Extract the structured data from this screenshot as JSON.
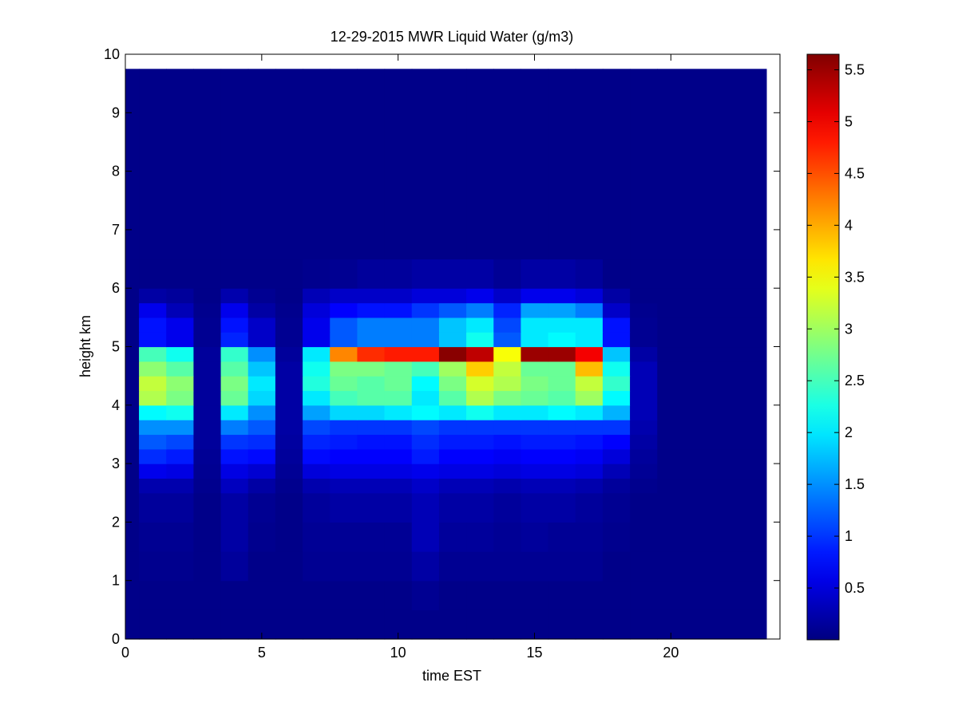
{
  "chart_data": {
    "type": "heatmap",
    "title": "12-29-2015 MWR Liquid Water (g/m3)",
    "xlabel": "time EST",
    "ylabel": "height km",
    "xlim": [
      0,
      24
    ],
    "ylim": [
      0,
      10
    ],
    "xticks": [
      "0",
      "5",
      "10",
      "15",
      "20"
    ],
    "xtick_values": [
      0,
      5,
      10,
      15,
      20
    ],
    "yticks": [
      "0",
      "1",
      "2",
      "3",
      "4",
      "5",
      "6",
      "7",
      "8",
      "9",
      "10"
    ],
    "ytick_values": [
      0,
      1,
      2,
      3,
      4,
      5,
      6,
      7,
      8,
      9,
      10
    ],
    "colorbar": {
      "ticks": [
        "0.5",
        "1",
        "1.5",
        "2",
        "2.5",
        "3",
        "3.5",
        "4",
        "4.5",
        "5",
        "5.5"
      ],
      "tick_values": [
        0.5,
        1,
        1.5,
        2,
        2.5,
        3,
        3.5,
        4,
        4.5,
        5,
        5.5
      ],
      "range": [
        0,
        5.65
      ],
      "colormap": "jet"
    },
    "data_extent": {
      "x": [
        0,
        23.5
      ],
      "y": [
        0,
        9.75
      ]
    },
    "column_x": [
      0,
      0.5,
      1.5,
      2.5,
      3.5,
      4.5,
      5.5,
      6.5,
      7.5,
      8.5,
      9.5,
      10.5,
      11.5,
      12.5,
      13.5,
      14.5,
      15.5,
      16.5,
      17.5,
      18.5,
      19.5,
      23.5
    ],
    "row_y": [
      0,
      0.5,
      1.0,
      1.5,
      2.0,
      2.5,
      2.75,
      3.0,
      3.25,
      3.5,
      3.75,
      4.0,
      4.25,
      4.5,
      4.75,
      5.0,
      5.25,
      5.5,
      5.75,
      6.0,
      6.5,
      9.75
    ],
    "values": [
      [
        0.05,
        0.05,
        0.05,
        0.05,
        0.05,
        0.05,
        0.05,
        0.05,
        0.05,
        0.05,
        0.05,
        0.05,
        0.05,
        0.05,
        0.05,
        0.05,
        0.05,
        0.05,
        0.05,
        0.05,
        0.05
      ],
      [
        0.05,
        0.05,
        0.05,
        0.05,
        0.05,
        0.05,
        0.05,
        0.05,
        0.05,
        0.05,
        0.05,
        0.1,
        0.05,
        0.05,
        0.05,
        0.05,
        0.05,
        0.05,
        0.05,
        0.05,
        0.05
      ],
      [
        0.05,
        0.08,
        0.08,
        0.05,
        0.15,
        0.05,
        0.05,
        0.1,
        0.1,
        0.1,
        0.1,
        0.2,
        0.1,
        0.1,
        0.1,
        0.1,
        0.1,
        0.1,
        0.05,
        0.05,
        0.05
      ],
      [
        0.05,
        0.1,
        0.1,
        0.05,
        0.2,
        0.08,
        0.05,
        0.12,
        0.12,
        0.12,
        0.12,
        0.3,
        0.15,
        0.15,
        0.12,
        0.15,
        0.12,
        0.12,
        0.08,
        0.05,
        0.05
      ],
      [
        0.05,
        0.15,
        0.15,
        0.05,
        0.2,
        0.1,
        0.05,
        0.15,
        0.2,
        0.2,
        0.2,
        0.3,
        0.2,
        0.2,
        0.15,
        0.2,
        0.2,
        0.15,
        0.1,
        0.05,
        0.05
      ],
      [
        0.05,
        0.25,
        0.25,
        0.08,
        0.35,
        0.2,
        0.08,
        0.25,
        0.3,
        0.3,
        0.3,
        0.4,
        0.3,
        0.3,
        0.25,
        0.3,
        0.3,
        0.25,
        0.15,
        0.08,
        0.05
      ],
      [
        0.05,
        0.6,
        0.55,
        0.1,
        0.55,
        0.45,
        0.12,
        0.5,
        0.55,
        0.55,
        0.55,
        0.6,
        0.55,
        0.55,
        0.5,
        0.55,
        0.55,
        0.5,
        0.3,
        0.12,
        0.05
      ],
      [
        0.05,
        0.95,
        0.85,
        0.12,
        0.8,
        0.75,
        0.15,
        0.75,
        0.7,
        0.7,
        0.7,
        0.85,
        0.7,
        0.7,
        0.65,
        0.7,
        0.7,
        0.65,
        0.5,
        0.15,
        0.05
      ],
      [
        0.05,
        1.2,
        1.1,
        0.15,
        1.0,
        0.95,
        0.18,
        0.9,
        0.85,
        0.8,
        0.8,
        0.95,
        0.85,
        0.85,
        0.8,
        0.85,
        0.85,
        0.8,
        0.7,
        0.2,
        0.05
      ],
      [
        0.05,
        1.5,
        1.5,
        0.15,
        1.4,
        1.2,
        0.2,
        1.1,
        1.0,
        1.0,
        1.0,
        1.1,
        1.0,
        1.0,
        1.0,
        1.0,
        1.0,
        1.0,
        1.0,
        0.25,
        0.05
      ],
      [
        0.05,
        2.1,
        2.2,
        0.15,
        2.0,
        1.5,
        0.2,
        1.6,
        1.9,
        1.9,
        2.0,
        2.1,
        2.0,
        2.2,
        2.0,
        2.0,
        2.1,
        2.0,
        1.7,
        0.3,
        0.05
      ],
      [
        0.05,
        3.1,
        2.8,
        0.15,
        2.7,
        1.9,
        0.2,
        2.0,
        2.5,
        2.6,
        2.6,
        2.0,
        2.6,
        3.1,
        2.8,
        2.7,
        2.6,
        3.0,
        2.1,
        0.3,
        0.05
      ],
      [
        0.05,
        3.2,
        2.9,
        0.15,
        2.8,
        2.0,
        0.2,
        2.3,
        2.7,
        2.6,
        2.7,
        2.1,
        2.8,
        3.3,
        3.1,
        2.8,
        2.7,
        3.2,
        2.4,
        0.3,
        0.05
      ],
      [
        0.05,
        2.9,
        2.6,
        0.15,
        2.6,
        1.8,
        0.2,
        2.2,
        2.8,
        2.8,
        2.7,
        2.5,
        3.0,
        3.8,
        3.2,
        2.7,
        2.7,
        3.9,
        2.2,
        0.3,
        0.05
      ],
      [
        0.05,
        2.5,
        2.2,
        0.15,
        2.4,
        1.5,
        0.15,
        2.0,
        4.2,
        4.7,
        4.8,
        4.8,
        5.6,
        5.3,
        3.5,
        5.5,
        5.5,
        5.0,
        1.8,
        0.2,
        0.05
      ],
      [
        0.05,
        0.8,
        0.6,
        0.1,
        0.9,
        0.4,
        0.1,
        0.6,
        1.2,
        1.4,
        1.4,
        1.4,
        1.8,
        2.2,
        1.2,
        2.0,
        2.1,
        2.0,
        0.8,
        0.1,
        0.05
      ],
      [
        0.05,
        0.8,
        0.6,
        0.1,
        0.8,
        0.4,
        0.1,
        0.6,
        1.2,
        1.4,
        1.4,
        1.4,
        1.8,
        2.0,
        1.1,
        2.0,
        2.0,
        2.0,
        0.8,
        0.1,
        0.05
      ],
      [
        0.05,
        0.6,
        0.3,
        0.08,
        0.6,
        0.2,
        0.08,
        0.5,
        0.7,
        0.8,
        0.8,
        1.0,
        1.2,
        1.4,
        0.9,
        1.6,
        1.6,
        1.4,
        0.4,
        0.08,
        0.05
      ],
      [
        0.05,
        0.2,
        0.15,
        0.05,
        0.25,
        0.1,
        0.05,
        0.3,
        0.4,
        0.4,
        0.4,
        0.5,
        0.5,
        0.6,
        0.4,
        0.6,
        0.6,
        0.5,
        0.2,
        0.05,
        0.05
      ],
      [
        0.05,
        0.05,
        0.05,
        0.05,
        0.05,
        0.05,
        0.05,
        0.08,
        0.1,
        0.15,
        0.15,
        0.2,
        0.2,
        0.2,
        0.12,
        0.2,
        0.2,
        0.15,
        0.05,
        0.05,
        0.05
      ],
      [
        0.05,
        0.05,
        0.05,
        0.05,
        0.05,
        0.05,
        0.05,
        0.05,
        0.05,
        0.05,
        0.05,
        0.05,
        0.05,
        0.05,
        0.05,
        0.05,
        0.05,
        0.05,
        0.05,
        0.05,
        0.05
      ]
    ]
  }
}
